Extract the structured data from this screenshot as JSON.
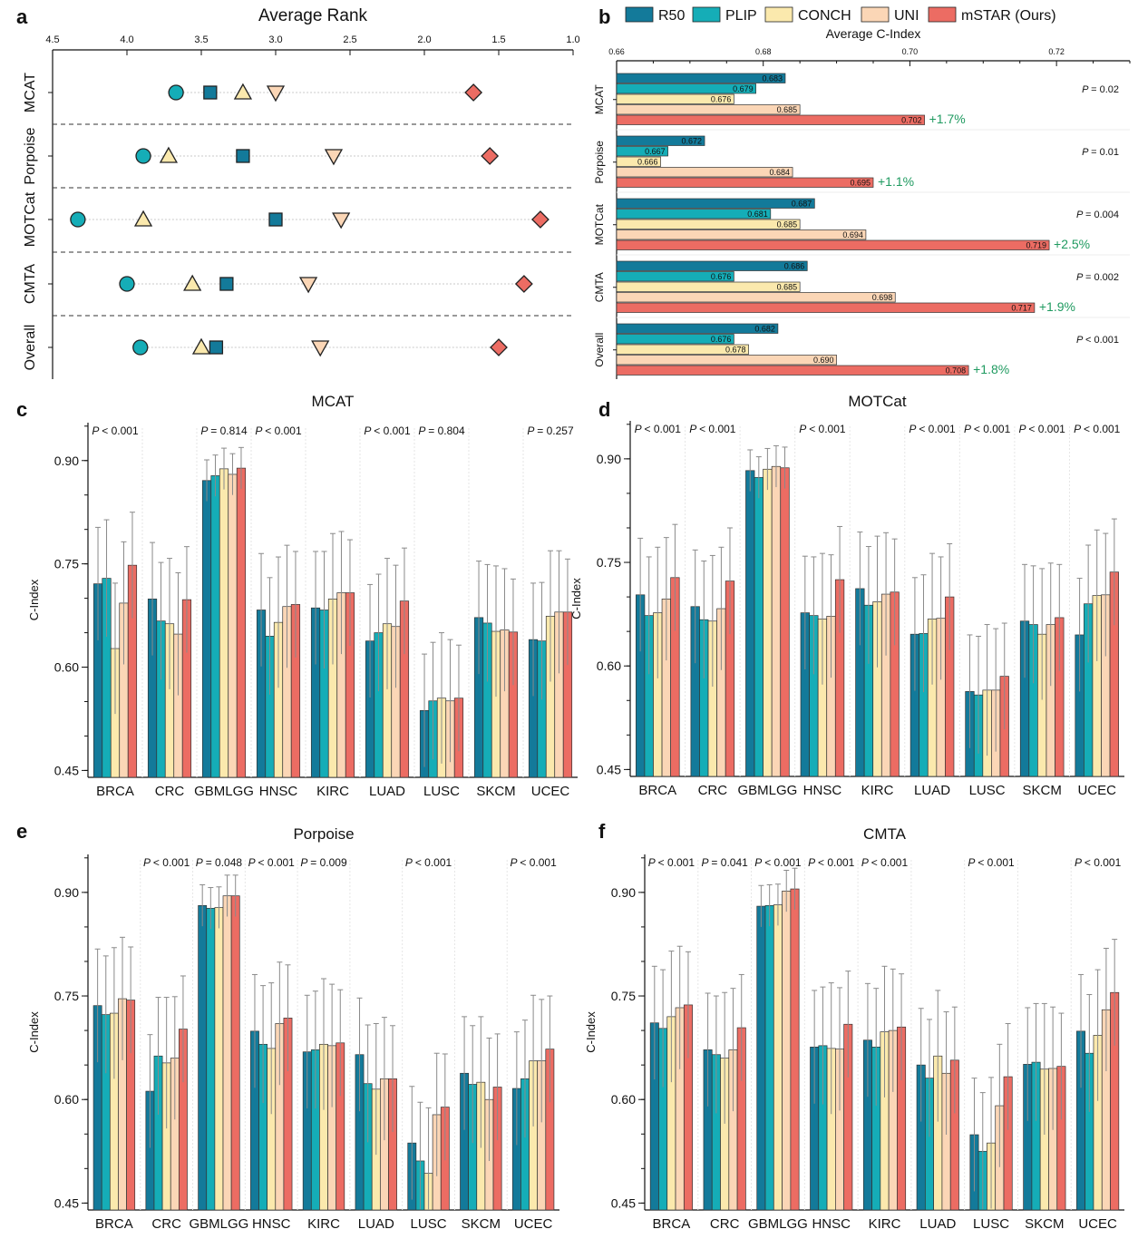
{
  "colors": {
    "R50": "#137a9a",
    "PLIP": "#15adb7",
    "CONCH": "#fbe9ad",
    "UNI": "#fbd6b6",
    "mSTAR": "#ec6c63",
    "gain": "#1f9a60"
  },
  "legend": [
    "R50",
    "PLIP",
    "CONCH",
    "UNI",
    "mSTAR (Ours)"
  ],
  "panel_letters": [
    "a",
    "b",
    "c",
    "d",
    "e",
    "f"
  ],
  "chart_data": [
    {
      "panel": "a",
      "type": "scatter",
      "title": "Average Rank",
      "x_ticks": [
        "4.5",
        "4.0",
        "3.5",
        "3.0",
        "2.5",
        "2.0",
        "1.5",
        "1.0"
      ],
      "xlim": [
        4.5,
        1.0
      ],
      "groups": [
        "MCAT",
        "Porpoise",
        "MOTCat",
        "CMTA",
        "Overall"
      ],
      "series": [
        {
          "name": "R50",
          "marker": "square",
          "values": [
            3.44,
            3.22,
            3.0,
            3.33,
            3.4
          ]
        },
        {
          "name": "PLIP",
          "marker": "circle",
          "values": [
            3.67,
            3.89,
            4.33,
            4.0,
            3.91
          ]
        },
        {
          "name": "CONCH",
          "marker": "triangle-up",
          "values": [
            3.22,
            3.72,
            3.89,
            3.56,
            3.5
          ]
        },
        {
          "name": "UNI",
          "marker": "triangle-down",
          "values": [
            3.0,
            2.61,
            2.56,
            2.78,
            2.7
          ]
        },
        {
          "name": "mSTAR (Ours)",
          "marker": "diamond",
          "values": [
            1.67,
            1.56,
            1.22,
            1.33,
            1.5
          ]
        }
      ]
    },
    {
      "panel": "b",
      "type": "bar",
      "orientation": "horizontal",
      "title": "Average C-Index",
      "x_ticks": [
        "0.66",
        "0.68",
        "0.70",
        "0.72"
      ],
      "xlim": [
        0.66,
        0.73
      ],
      "groups": [
        "MCAT",
        "Porpoise",
        "MOTCat",
        "CMTA",
        "Overall"
      ],
      "series": [
        {
          "name": "R50",
          "values": [
            0.683,
            0.672,
            0.687,
            0.686,
            0.682
          ]
        },
        {
          "name": "PLIP",
          "values": [
            0.679,
            0.667,
            0.681,
            0.676,
            0.676
          ]
        },
        {
          "name": "CONCH",
          "values": [
            0.676,
            0.666,
            0.685,
            0.685,
            0.678
          ]
        },
        {
          "name": "UNI",
          "values": [
            0.685,
            0.684,
            0.694,
            0.698,
            0.69
          ]
        },
        {
          "name": "mSTAR (Ours)",
          "values": [
            0.702,
            0.695,
            0.719,
            0.717,
            0.708
          ]
        }
      ],
      "value_labels": [
        [
          "0.683",
          "0.679",
          "0.676",
          "0.685",
          "0.702"
        ],
        [
          "0.672",
          "0.667",
          "0.666",
          "0.684",
          "0.695"
        ],
        [
          "0.687",
          "0.681",
          "0.685",
          "0.694",
          "0.719"
        ],
        [
          "0.686",
          "0.676",
          "0.685",
          "0.698",
          "0.717"
        ],
        [
          "0.682",
          "0.676",
          "0.678",
          "0.690",
          "0.708"
        ]
      ],
      "gains": [
        "+1.7%",
        "+1.1%",
        "+2.5%",
        "+1.9%",
        "+1.8%"
      ],
      "p_values": [
        "= 0.02",
        "= 0.01",
        "= 0.004",
        "= 0.002",
        "< 0.001"
      ]
    },
    {
      "panel": "c",
      "type": "bar",
      "title": "MCAT",
      "ylabel": "C-Index",
      "ylim": [
        0.44,
        0.955
      ],
      "y_ticks": [
        "0.45",
        "0.60",
        "0.75",
        "0.90"
      ],
      "categories": [
        "BRCA",
        "CRC",
        "GBMLGG",
        "HNSC",
        "KIRC",
        "LUAD",
        "LUSC",
        "SKCM",
        "UCEC"
      ],
      "values": [
        [
          0.721,
          0.729,
          0.627,
          0.693,
          0.748
        ],
        [
          0.699,
          0.667,
          0.663,
          0.648,
          0.698
        ],
        [
          0.871,
          0.878,
          0.888,
          0.88,
          0.889
        ],
        [
          0.683,
          0.645,
          0.665,
          0.688,
          0.691
        ],
        [
          0.686,
          0.683,
          0.699,
          0.708,
          0.708
        ],
        [
          0.638,
          0.65,
          0.663,
          0.659,
          0.696
        ],
        [
          0.537,
          0.551,
          0.555,
          0.551,
          0.555
        ],
        [
          0.672,
          0.664,
          0.652,
          0.654,
          0.651
        ],
        [
          0.64,
          0.638,
          0.674,
          0.68,
          0.68
        ]
      ],
      "p_values": [
        "< 0.001",
        "",
        "= 0.814",
        "< 0.001",
        "",
        "< 0.001",
        "= 0.804",
        "",
        "= 0.257"
      ]
    },
    {
      "panel": "d",
      "type": "bar",
      "title": "MOTCat",
      "ylabel": "C-Index",
      "ylim": [
        0.44,
        0.955
      ],
      "y_ticks": [
        "0.45",
        "0.60",
        "0.75",
        "0.90"
      ],
      "categories": [
        "BRCA",
        "CRC",
        "GBMLGG",
        "HNSC",
        "KIRC",
        "LUAD",
        "LUSC",
        "SKCM",
        "UCEC"
      ],
      "values": [
        [
          0.703,
          0.673,
          0.677,
          0.697,
          0.728
        ],
        [
          0.686,
          0.667,
          0.665,
          0.683,
          0.723
        ],
        [
          0.883,
          0.873,
          0.885,
          0.889,
          0.887
        ],
        [
          0.677,
          0.673,
          0.668,
          0.672,
          0.725
        ],
        [
          0.712,
          0.688,
          0.693,
          0.704,
          0.707
        ],
        [
          0.646,
          0.647,
          0.668,
          0.669,
          0.7
        ],
        [
          0.563,
          0.558,
          0.565,
          0.565,
          0.585
        ],
        [
          0.665,
          0.66,
          0.646,
          0.66,
          0.67
        ],
        [
          0.645,
          0.69,
          0.702,
          0.703,
          0.736
        ]
      ],
      "p_values": [
        "< 0.001",
        "< 0.001",
        "",
        "< 0.001",
        "",
        "< 0.001",
        "< 0.001",
        "< 0.001",
        "< 0.001"
      ]
    },
    {
      "panel": "e",
      "type": "bar",
      "title": "Porpoise",
      "ylabel": "C-Index",
      "ylim": [
        0.44,
        0.955
      ],
      "y_ticks": [
        "0.45",
        "0.60",
        "0.75",
        "0.90"
      ],
      "categories": [
        "BRCA",
        "CRC",
        "GBMLGG",
        "HNSC",
        "KIRC",
        "LUAD",
        "LUSC",
        "SKCM",
        "UCEC"
      ],
      "values": [
        [
          0.736,
          0.723,
          0.725,
          0.746,
          0.744
        ],
        [
          0.612,
          0.663,
          0.653,
          0.66,
          0.702
        ],
        [
          0.881,
          0.877,
          0.878,
          0.895,
          0.895
        ],
        [
          0.699,
          0.68,
          0.674,
          0.71,
          0.718
        ],
        [
          0.669,
          0.672,
          0.68,
          0.678,
          0.682
        ],
        [
          0.665,
          0.623,
          0.615,
          0.63,
          0.63
        ],
        [
          0.537,
          0.511,
          0.493,
          0.578,
          0.589
        ],
        [
          0.638,
          0.622,
          0.625,
          0.6,
          0.618
        ],
        [
          0.616,
          0.63,
          0.656,
          0.656,
          0.673
        ]
      ],
      "p_values": [
        "",
        "< 0.001",
        "= 0.048",
        "< 0.001",
        "= 0.009",
        "",
        "< 0.001",
        "",
        "< 0.001"
      ]
    },
    {
      "panel": "f",
      "type": "bar",
      "title": "CMTA",
      "ylabel": "C-Index",
      "ylim": [
        0.44,
        0.955
      ],
      "y_ticks": [
        "0.45",
        "0.60",
        "0.75",
        "0.90"
      ],
      "categories": [
        "BRCA",
        "CRC",
        "GBMLGG",
        "HNSC",
        "KIRC",
        "LUAD",
        "LUSC",
        "SKCM",
        "UCEC"
      ],
      "values": [
        [
          0.711,
          0.703,
          0.72,
          0.733,
          0.737
        ],
        [
          0.672,
          0.665,
          0.66,
          0.672,
          0.704
        ],
        [
          0.88,
          0.881,
          0.882,
          0.902,
          0.905
        ],
        [
          0.676,
          0.678,
          0.674,
          0.673,
          0.709
        ],
        [
          0.686,
          0.676,
          0.698,
          0.7,
          0.705
        ],
        [
          0.65,
          0.631,
          0.663,
          0.638,
          0.657
        ],
        [
          0.549,
          0.525,
          0.537,
          0.591,
          0.633
        ],
        [
          0.651,
          0.654,
          0.644,
          0.645,
          0.648
        ],
        [
          0.699,
          0.667,
          0.693,
          0.73,
          0.755
        ]
      ],
      "p_values": [
        "< 0.001",
        "= 0.041",
        "< 0.001",
        "< 0.001",
        "< 0.001",
        "",
        "< 0.001",
        "",
        "< 0.001"
      ]
    }
  ]
}
